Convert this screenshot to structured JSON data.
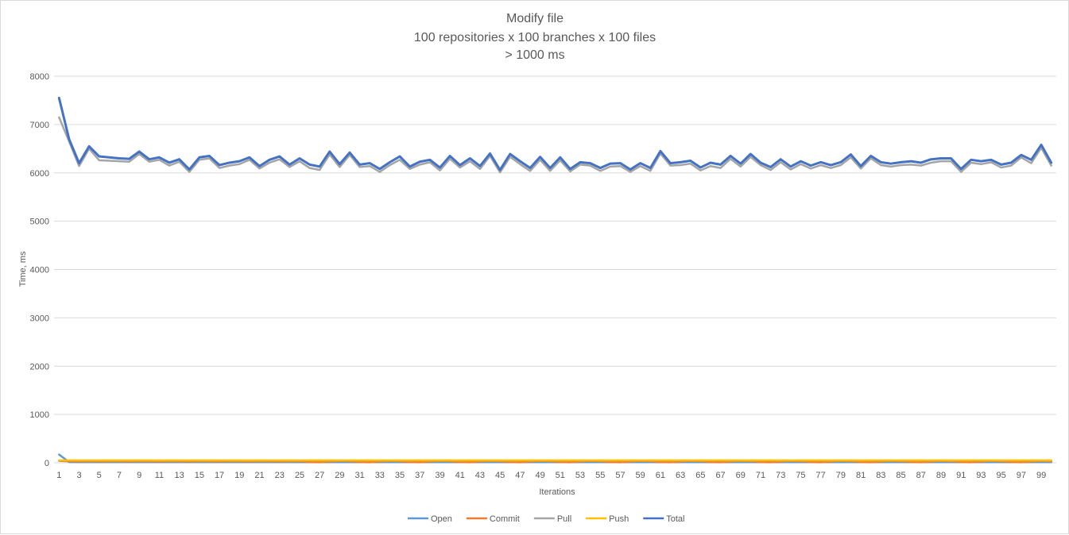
{
  "chart_data": {
    "type": "line",
    "title": [
      "Modify file",
      "100 repositories x 100 branches x 100 files",
      "> 1000 ms"
    ],
    "xlabel": "Iterations",
    "ylabel": "Time, ms",
    "ylim": [
      0,
      8000
    ],
    "yticks": [
      0,
      1000,
      2000,
      3000,
      4000,
      5000,
      6000,
      7000,
      8000
    ],
    "xticks": [
      1,
      3,
      5,
      7,
      9,
      11,
      13,
      15,
      17,
      19,
      21,
      23,
      25,
      27,
      29,
      31,
      33,
      35,
      37,
      39,
      41,
      43,
      45,
      47,
      49,
      51,
      53,
      55,
      57,
      59,
      61,
      63,
      65,
      67,
      69,
      71,
      73,
      75,
      77,
      79,
      81,
      83,
      85,
      87,
      89,
      91,
      93,
      95,
      97,
      99
    ],
    "grid": true,
    "legend_position": "bottom",
    "x_count": 100,
    "series": [
      {
        "name": "Open",
        "color": "#5b9bd5",
        "width": 2.5,
        "values": [
          170,
          15,
          12,
          12,
          12,
          12,
          12,
          12,
          12,
          12,
          12,
          12,
          12,
          12,
          12,
          12,
          12,
          12,
          12,
          12,
          12,
          12,
          12,
          12,
          12,
          12,
          12,
          12,
          12,
          12,
          12,
          12,
          12,
          12,
          12,
          12,
          12,
          12,
          12,
          12,
          12,
          12,
          12,
          12,
          12,
          12,
          12,
          12,
          12,
          12,
          12,
          12,
          12,
          12,
          12,
          12,
          12,
          12,
          12,
          12,
          12,
          12,
          12,
          12,
          12,
          12,
          12,
          12,
          12,
          12,
          12,
          12,
          12,
          12,
          12,
          12,
          12,
          12,
          12,
          12,
          12,
          12,
          12,
          12,
          12,
          12,
          12,
          12,
          12,
          12,
          12,
          12,
          12,
          12,
          12,
          12,
          12,
          12,
          12,
          12
        ]
      },
      {
        "name": "Commit",
        "color": "#ed7d31",
        "width": 2.5,
        "values": [
          40,
          30,
          25,
          30,
          25,
          28,
          30,
          25,
          30,
          28,
          25,
          30,
          28,
          25,
          30,
          28,
          25,
          30,
          28,
          25,
          30,
          28,
          25,
          30,
          28,
          15,
          10,
          25,
          40,
          30,
          15,
          10,
          25,
          40,
          30,
          15,
          10,
          25,
          40,
          30,
          15,
          10,
          25,
          40,
          30,
          15,
          10,
          25,
          40,
          30,
          15,
          10,
          25,
          40,
          30,
          15,
          10,
          25,
          40,
          30,
          15,
          10,
          25,
          40,
          30,
          15,
          10,
          25,
          40,
          30,
          15,
          10,
          25,
          40,
          30,
          15,
          10,
          25,
          40,
          30,
          15,
          10,
          25,
          40,
          30,
          15,
          10,
          25,
          40,
          30,
          15,
          10,
          25,
          40,
          30,
          15,
          10,
          25,
          40,
          30
        ]
      },
      {
        "name": "Pull",
        "color": "#a5a5a5",
        "width": 2.5,
        "values": [
          7150,
          6650,
          6140,
          6500,
          6260,
          6250,
          6240,
          6230,
          6390,
          6230,
          6270,
          6150,
          6230,
          6020,
          6270,
          6300,
          6100,
          6150,
          6180,
          6270,
          6090,
          6210,
          6280,
          6120,
          6240,
          6100,
          6060,
          6380,
          6120,
          6370,
          6120,
          6140,
          6020,
          6160,
          6270,
          6080,
          6170,
          6220,
          6050,
          6290,
          6110,
          6240,
          6080,
          6350,
          6010,
          6330,
          6180,
          6040,
          6270,
          6040,
          6260,
          6030,
          6170,
          6150,
          6040,
          6130,
          6140,
          6020,
          6140,
          6040,
          6400,
          6150,
          6160,
          6190,
          6050,
          6140,
          6100,
          6290,
          6130,
          6330,
          6160,
          6060,
          6220,
          6070,
          6180,
          6090,
          6160,
          6100,
          6160,
          6320,
          6090,
          6300,
          6160,
          6130,
          6160,
          6170,
          6150,
          6210,
          6240,
          6240,
          6020,
          6210,
          6180,
          6220,
          6110,
          6150,
          6320,
          6200,
          6520,
          6150
        ]
      },
      {
        "name": "Push",
        "color": "#ffc000",
        "width": 2.5,
        "values": [
          50,
          50,
          50,
          50,
          50,
          50,
          50,
          50,
          50,
          50,
          50,
          50,
          50,
          50,
          50,
          50,
          50,
          50,
          50,
          50,
          50,
          50,
          50,
          50,
          50,
          50,
          50,
          50,
          50,
          50,
          50,
          50,
          50,
          50,
          50,
          50,
          50,
          50,
          50,
          50,
          50,
          50,
          50,
          50,
          50,
          50,
          50,
          50,
          50,
          50,
          50,
          50,
          50,
          50,
          50,
          50,
          50,
          50,
          50,
          50,
          50,
          50,
          50,
          50,
          50,
          50,
          50,
          50,
          50,
          50,
          50,
          50,
          50,
          50,
          50,
          50,
          50,
          50,
          50,
          50,
          50,
          50,
          50,
          50,
          50,
          50,
          50,
          50,
          50,
          50,
          50,
          50,
          50,
          50,
          50,
          50,
          50,
          50,
          50,
          50
        ]
      },
      {
        "name": "Total",
        "color": "#4472c4",
        "width": 3,
        "values": [
          7550,
          6700,
          6200,
          6550,
          6340,
          6320,
          6300,
          6290,
          6440,
          6280,
          6320,
          6210,
          6280,
          6070,
          6320,
          6350,
          6160,
          6210,
          6240,
          6320,
          6140,
          6270,
          6340,
          6170,
          6300,
          6170,
          6130,
          6440,
          6180,
          6420,
          6170,
          6200,
          6080,
          6220,
          6340,
          6130,
          6230,
          6270,
          6110,
          6350,
          6160,
          6300,
          6140,
          6400,
          6060,
          6390,
          6240,
          6100,
          6330,
          6100,
          6320,
          6080,
          6220,
          6200,
          6100,
          6190,
          6200,
          6070,
          6200,
          6100,
          6450,
          6200,
          6220,
          6250,
          6110,
          6210,
          6170,
          6350,
          6190,
          6390,
          6210,
          6120,
          6280,
          6130,
          6240,
          6150,
          6220,
          6160,
          6220,
          6380,
          6140,
          6350,
          6220,
          6190,
          6220,
          6240,
          6210,
          6280,
          6300,
          6300,
          6080,
          6270,
          6240,
          6270,
          6170,
          6210,
          6370,
          6270,
          6580,
          6210
        ]
      }
    ]
  }
}
